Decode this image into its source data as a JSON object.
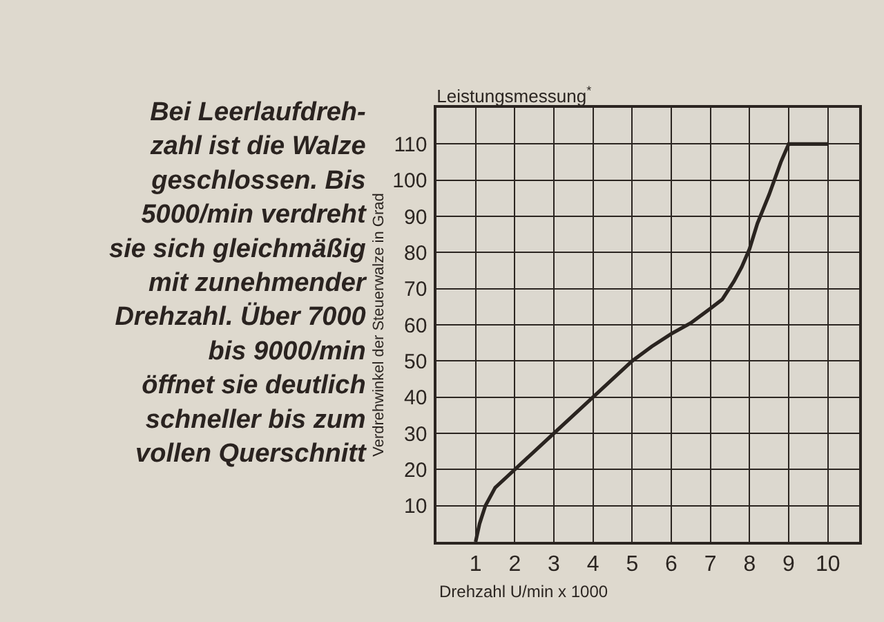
{
  "chart_data": {
    "type": "line",
    "title": "Leistungsmessung$^{*}$",
    "xlabel": "Drehzahl U/min x 1000",
    "ylabel": "Verdrehwinkel der Steuerwalze in Grad",
    "annotations": [
      "Bei Leerlaufdreh-\nzahl ist die Walze\ngeschlossen. Bis\n5000/min verdreht\nsie sich gleichmäßig\nmit zunehmender\nDrehzahl. Über 7000\nbis 9000/min\nöffnet sie deutlich\nschneller bis zum\nvollen Querschnitt"
    ],
    "x": [
      1,
      1.1,
      1.25,
      1.5,
      2,
      3,
      4,
      5,
      5.5,
      6,
      6.5,
      7,
      7.3,
      7.6,
      7.8,
      8,
      8.2,
      8.5,
      8.8,
      9,
      10
    ],
    "values": [
      0,
      5,
      10,
      15,
      20,
      30,
      40,
      50,
      54,
      57.5,
      60.5,
      64.5,
      67,
      72,
      76,
      81,
      88,
      96,
      105,
      110,
      110
    ],
    "color": "#2a2420",
    "xlim": [
      0,
      10.8
    ],
    "xticks": [
      1,
      2,
      3,
      4,
      5,
      6,
      7,
      8,
      9,
      10
    ],
    "ylim": [
      0,
      120
    ],
    "yticks": [
      10,
      20,
      30,
      40,
      50,
      60,
      70,
      80,
      90,
      100,
      110
    ],
    "grid": true,
    "line_style": "solid"
  }
}
